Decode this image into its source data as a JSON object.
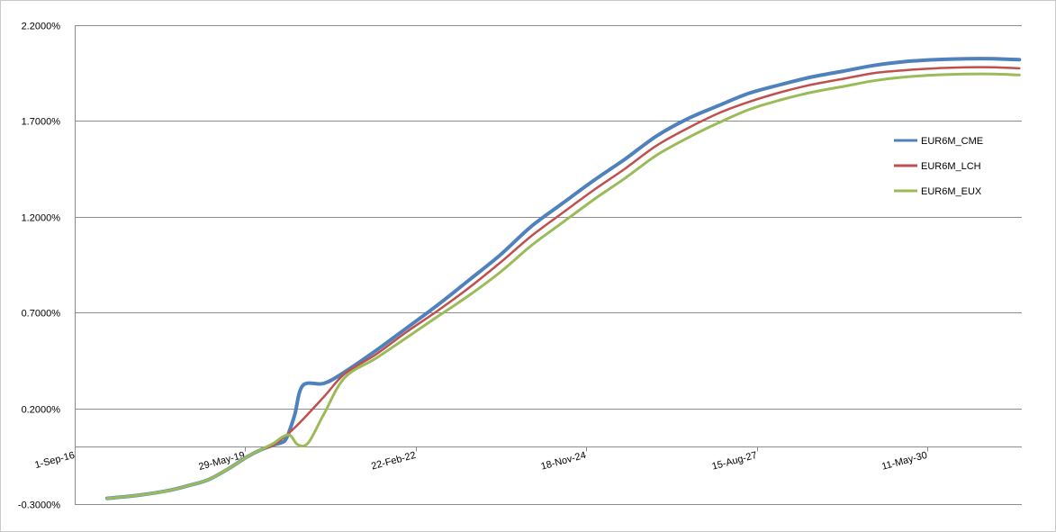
{
  "chart_data": {
    "type": "line",
    "title": "",
    "xlabel": "",
    "ylabel": "",
    "y_tick_labels": [
      "-0.3000%",
      "0.2000%",
      "0.7000%",
      "1.2000%",
      "1.7000%",
      "2.2000%"
    ],
    "ylim": [
      -0.3,
      2.2
    ],
    "y_ticks": [
      -0.3,
      0.2,
      0.7,
      1.2,
      1.7,
      2.2
    ],
    "x_tick_labels": [
      "1-Sep-16",
      "29-May-19",
      "22-Feb-22",
      "18-Nov-24",
      "15-Aug-27",
      "11-May-30"
    ],
    "x_ticks": [
      "2016-09-01",
      "2019-05-29",
      "2022-02-22",
      "2024-11-18",
      "2027-08-15",
      "2030-05-11"
    ],
    "xlim": [
      "2016-09-01",
      "2031-11-15"
    ],
    "grid": "horizontal",
    "legend_position": "right",
    "series": [
      {
        "name": "EUR6M_CME",
        "color": "#4f81bd",
        "x": [
          "2017-03-10",
          "2017-09-01",
          "2018-03-01",
          "2018-07-15",
          "2018-11-01",
          "2019-03-01",
          "2019-06-15",
          "2019-09-01",
          "2019-11-15",
          "2020-01-15",
          "2020-02-15",
          "2020-03-15",
          "2020-05-01",
          "2020-09-01",
          "2021-01-01",
          "2021-07-01",
          "2022-01-01",
          "2022-07-01",
          "2023-01-01",
          "2023-07-01",
          "2024-01-01",
          "2024-07-01",
          "2025-01-01",
          "2025-07-01",
          "2026-01-01",
          "2026-07-01",
          "2027-01-01",
          "2027-07-01",
          "2028-01-01",
          "2028-07-01",
          "2029-01-01",
          "2029-07-01",
          "2030-01-01",
          "2030-07-01",
          "2031-01-01",
          "2031-06-01",
          "2031-11-01"
        ],
        "values": [
          -0.27,
          -0.255,
          -0.23,
          -0.2,
          -0.17,
          -0.11,
          -0.05,
          -0.015,
          0.01,
          0.03,
          0.09,
          0.17,
          0.32,
          0.33,
          0.39,
          0.5,
          0.62,
          0.74,
          0.87,
          1.0,
          1.15,
          1.27,
          1.39,
          1.5,
          1.62,
          1.71,
          1.78,
          1.845,
          1.89,
          1.93,
          1.96,
          1.99,
          2.01,
          2.02,
          2.025,
          2.025,
          2.02
        ]
      },
      {
        "name": "EUR6M_LCH",
        "color": "#c0504d",
        "x": [
          "2017-03-10",
          "2017-09-01",
          "2018-03-01",
          "2018-07-15",
          "2018-11-01",
          "2019-03-01",
          "2019-06-15",
          "2019-09-01",
          "2019-11-15",
          "2020-03-15",
          "2020-09-01",
          "2021-01-01",
          "2021-07-01",
          "2022-01-01",
          "2022-07-01",
          "2023-01-01",
          "2023-07-01",
          "2024-01-01",
          "2024-07-01",
          "2025-01-01",
          "2025-07-01",
          "2026-01-01",
          "2026-07-01",
          "2027-01-01",
          "2027-07-01",
          "2028-01-01",
          "2028-07-01",
          "2029-01-01",
          "2029-07-01",
          "2030-01-01",
          "2030-07-01",
          "2031-01-01",
          "2031-06-01",
          "2031-11-01"
        ],
        "values": [
          -0.27,
          -0.255,
          -0.23,
          -0.2,
          -0.17,
          -0.11,
          -0.05,
          -0.015,
          0.01,
          0.1,
          0.26,
          0.38,
          0.48,
          0.6,
          0.71,
          0.83,
          0.96,
          1.1,
          1.22,
          1.34,
          1.45,
          1.57,
          1.66,
          1.74,
          1.8,
          1.85,
          1.89,
          1.92,
          1.95,
          1.965,
          1.975,
          1.98,
          1.98,
          1.975
        ]
      },
      {
        "name": "EUR6M_EUX",
        "color": "#9bbb59",
        "x": [
          "2017-03-10",
          "2017-09-01",
          "2018-03-01",
          "2018-07-15",
          "2018-11-01",
          "2019-03-01",
          "2019-06-15",
          "2019-09-01",
          "2019-11-15",
          "2020-01-01",
          "2020-02-15",
          "2020-04-01",
          "2020-06-01",
          "2020-09-01",
          "2021-01-01",
          "2021-07-01",
          "2022-01-01",
          "2022-07-01",
          "2023-01-01",
          "2023-07-01",
          "2024-01-01",
          "2024-07-01",
          "2025-01-01",
          "2025-07-01",
          "2026-01-01",
          "2026-07-01",
          "2027-01-01",
          "2027-07-01",
          "2028-01-01",
          "2028-07-01",
          "2029-01-01",
          "2029-07-01",
          "2030-01-01",
          "2030-07-01",
          "2031-01-01",
          "2031-06-01",
          "2031-11-01"
        ],
        "values": [
          -0.27,
          -0.255,
          -0.23,
          -0.2,
          -0.17,
          -0.11,
          -0.05,
          -0.015,
          0.02,
          0.05,
          0.06,
          0.01,
          0.02,
          0.17,
          0.36,
          0.46,
          0.57,
          0.68,
          0.79,
          0.91,
          1.05,
          1.17,
          1.29,
          1.4,
          1.52,
          1.61,
          1.69,
          1.76,
          1.81,
          1.85,
          1.88,
          1.91,
          1.93,
          1.94,
          1.945,
          1.945,
          1.94
        ]
      }
    ]
  }
}
